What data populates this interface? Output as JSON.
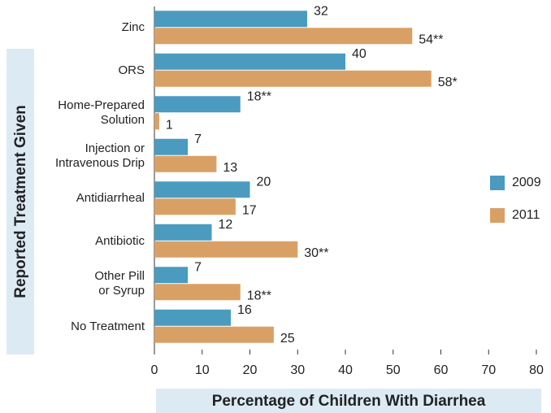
{
  "chart_data": {
    "type": "bar",
    "orientation": "horizontal",
    "y_label": "Reported Treatment Given",
    "x_label": "Percentage of Children With Diarrhea",
    "categories": [
      "Zinc",
      "ORS",
      "Home-Prepared\nSolution",
      "Injection or\nIntravenous Drip",
      "Antidiarrheal",
      "Antibiotic",
      "Other Pill\nor Syrup",
      "No Treatment"
    ],
    "series": [
      {
        "name": "2009",
        "color": "#4a9bbf",
        "values": [
          32,
          40,
          18,
          7,
          20,
          12,
          7,
          16
        ],
        "value_labels": [
          "32",
          "40",
          "18**",
          "7",
          "20",
          "12",
          "7",
          "16"
        ]
      },
      {
        "name": "2011",
        "color": "#d9a066",
        "values": [
          54,
          58,
          1,
          13,
          17,
          30,
          18,
          25
        ],
        "value_labels": [
          "54**",
          "58*",
          "1",
          "13",
          "17",
          "30**",
          "18**",
          "25"
        ]
      }
    ],
    "xlim": [
      0,
      80
    ],
    "xticks": [
      0,
      10,
      20,
      30,
      40,
      50,
      60,
      70,
      80
    ],
    "legend": "right"
  }
}
